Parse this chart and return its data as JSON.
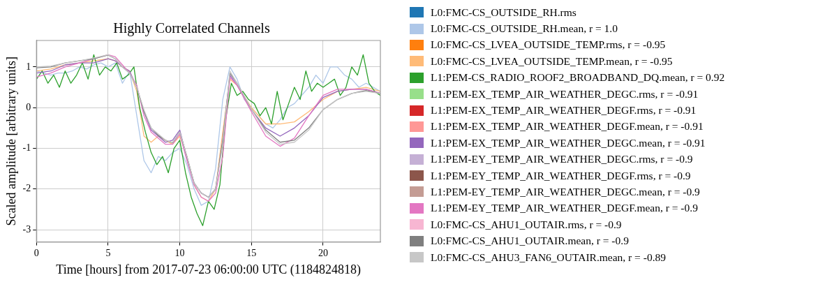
{
  "chart_data": {
    "type": "line",
    "title": "Highly Correlated Channels",
    "xlabel": "Time [hours] from 2017-07-23 06:00:00 UTC (1184824818)",
    "ylabel": "Scaled amplitude [arbitrary units]",
    "xlim": [
      0,
      24
    ],
    "xticks": [
      0,
      5,
      10,
      15,
      20
    ],
    "ylim": [
      -3.3,
      1.65
    ],
    "yticks": [
      -3,
      -2,
      -1,
      0,
      1
    ],
    "grid": true,
    "legend": "right",
    "marker": "none",
    "line_style": "solid",
    "x": [
      0,
      1,
      2,
      3,
      4,
      5,
      5.5,
      6,
      6.5,
      7,
      7.5,
      8,
      8.5,
      9,
      9.5,
      10,
      10.5,
      11,
      11.5,
      12,
      12.5,
      13,
      13.5,
      14,
      15,
      16,
      17,
      18,
      19,
      20,
      21,
      22,
      23,
      24
    ],
    "series": [
      {
        "name": "L0:FMC-CS_OUTSIDE_RH.rms",
        "color": "#1f77b4",
        "values": [
          null,
          null,
          null,
          null,
          null,
          null,
          null,
          null,
          null,
          null,
          null,
          null,
          null,
          null,
          null,
          null,
          null,
          null,
          null,
          null,
          null,
          null,
          null,
          null,
          null,
          null,
          null,
          null,
          null,
          null,
          null,
          null,
          null,
          null
        ]
      },
      {
        "name": "L0:FMC-CS_OUTSIDE_RH.mean, r = 1.0",
        "color": "#aec7e8",
        "x": [
          0,
          0.5,
          1,
          1.5,
          2,
          2.5,
          3,
          3.5,
          4,
          4.5,
          5,
          5.5,
          6,
          6.5,
          7,
          7.5,
          8,
          8.5,
          9,
          9.5,
          10,
          10.5,
          11,
          11.5,
          12,
          12.5,
          13,
          13.5,
          14,
          14.5,
          15,
          15.5,
          16,
          16.5,
          17,
          17.5,
          18,
          18.5,
          19,
          19.5,
          20,
          20.5,
          21,
          21.5,
          22,
          22.5,
          23,
          23.5,
          24
        ],
        "values": [
          0.9,
          0.85,
          0.8,
          0.85,
          0.85,
          0.9,
          1.0,
          0.95,
          1.05,
          1.1,
          1.0,
          1.1,
          0.6,
          0.9,
          -0.2,
          -1.3,
          -1.6,
          -1.2,
          -1.3,
          -1.1,
          -1.0,
          -1.4,
          -2.0,
          -2.4,
          -2.3,
          -1.5,
          0.2,
          1.0,
          0.7,
          0.2,
          0.0,
          -0.2,
          -0.4,
          -0.5,
          -0.3,
          0.0,
          0.1,
          0.3,
          0.5,
          0.8,
          0.6,
          1.0,
          1.0,
          0.8,
          0.7,
          0.5,
          0.6,
          0.5,
          0.4
        ]
      },
      {
        "name": "L0:FMC-CS_LVEA_OUTSIDE_TEMP.rms, r = -0.95",
        "color": "#ff7f0e",
        "values": [
          null,
          null,
          null,
          null,
          null,
          null,
          null,
          null,
          null,
          null,
          null,
          null,
          null,
          null,
          null,
          null,
          null,
          null,
          null,
          null,
          null,
          null,
          null,
          null,
          null,
          null,
          null,
          null,
          null,
          null,
          null,
          null,
          null,
          null
        ]
      },
      {
        "name": "L0:FMC-CS_LVEA_OUTSIDE_TEMP.mean, r = -0.95",
        "color": "#ffbb78",
        "values": [
          0.9,
          0.95,
          1.05,
          1.1,
          1.15,
          1.2,
          1.15,
          1.0,
          0.9,
          0.4,
          -0.7,
          -0.85,
          -0.7,
          -0.8,
          -0.9,
          -0.7,
          -1.2,
          -1.9,
          -2.2,
          -2.3,
          -2.0,
          -0.6,
          0.7,
          0.55,
          0.0,
          -0.4,
          -0.4,
          -0.35,
          -0.1,
          0.2,
          0.4,
          0.45,
          0.5,
          0.4
        ]
      },
      {
        "name": "L1:PEM-CS_RADIO_ROOF2_BROADBAND_DQ.mean, r = 0.92",
        "color": "#2ca02c",
        "x": [
          0,
          0.4,
          0.8,
          1.2,
          1.6,
          2,
          2.4,
          2.8,
          3.2,
          3.6,
          4,
          4.4,
          4.8,
          5.2,
          5.6,
          6,
          6.4,
          6.8,
          7.2,
          7.6,
          8,
          8.4,
          8.8,
          9.2,
          9.6,
          10,
          10.4,
          10.8,
          11.2,
          11.6,
          12,
          12.4,
          12.8,
          13.2,
          13.6,
          14,
          14.4,
          14.8,
          15.2,
          15.6,
          16,
          16.4,
          16.8,
          17.2,
          17.6,
          18,
          18.4,
          18.8,
          19.2,
          19.6,
          20,
          20.4,
          20.8,
          21.2,
          21.6,
          22,
          22.4,
          22.8,
          23.2,
          23.6,
          24
        ],
        "values": [
          0.7,
          0.9,
          0.6,
          0.8,
          0.5,
          0.9,
          0.6,
          0.8,
          1.1,
          0.7,
          1.3,
          0.8,
          1.0,
          0.9,
          1.1,
          0.7,
          0.8,
          1.0,
          0.0,
          -0.6,
          -1.1,
          -1.4,
          -1.2,
          -1.6,
          -1.0,
          -0.8,
          -1.6,
          -2.2,
          -2.6,
          -2.9,
          -2.3,
          -2.5,
          -1.9,
          -0.3,
          0.6,
          0.3,
          0.4,
          0.2,
          0.1,
          -0.2,
          0.0,
          -0.4,
          0.4,
          -0.3,
          0.1,
          0.5,
          0.2,
          0.9,
          0.4,
          0.6,
          0.5,
          0.6,
          0.7,
          0.3,
          0.5,
          1.0,
          0.8,
          1.3,
          0.6,
          0.4,
          0.3
        ]
      },
      {
        "name": "L1:PEM-EX_TEMP_AIR_WEATHER_DEGC.rms, r = -0.91",
        "color": "#98df8a",
        "values": [
          null,
          null,
          null,
          null,
          null,
          null,
          null,
          null,
          null,
          null,
          null,
          null,
          null,
          null,
          null,
          null,
          null,
          null,
          null,
          null,
          null,
          null,
          null,
          null,
          null,
          null,
          null,
          null,
          null,
          null,
          null,
          null,
          null,
          null
        ]
      },
      {
        "name": "L1:PEM-EX_TEMP_AIR_WEATHER_DEGF.rms, r = -0.91",
        "color": "#d62728",
        "values": [
          null,
          null,
          null,
          null,
          null,
          null,
          null,
          null,
          null,
          null,
          null,
          null,
          null,
          null,
          null,
          null,
          null,
          null,
          null,
          null,
          null,
          null,
          null,
          null,
          null,
          null,
          null,
          null,
          null,
          null,
          null,
          null,
          null,
          null
        ]
      },
      {
        "name": "L1:PEM-EX_TEMP_AIR_WEATHER_DEGF.mean, r = -0.91",
        "color": "#ff9896",
        "values": [
          null,
          null,
          null,
          null,
          null,
          null,
          null,
          null,
          null,
          null,
          null,
          null,
          null,
          null,
          null,
          null,
          null,
          null,
          null,
          null,
          null,
          null,
          null,
          null,
          null,
          null,
          null,
          null,
          null,
          null,
          null,
          null,
          null,
          null
        ]
      },
      {
        "name": "L1:PEM-EX_TEMP_AIR_WEATHER_DEGC.mean, r = -0.91",
        "color": "#9467bd",
        "values": [
          0.85,
          0.9,
          1.05,
          1.1,
          1.1,
          1.2,
          1.15,
          1.0,
          0.9,
          0.5,
          -0.1,
          -0.55,
          -0.7,
          -0.85,
          -0.8,
          -0.55,
          -1.25,
          -1.85,
          -2.1,
          -2.2,
          -2.0,
          -0.8,
          0.8,
          0.55,
          -0.05,
          -0.5,
          -0.7,
          -0.5,
          -0.2,
          0.25,
          0.4,
          0.45,
          0.45,
          0.35
        ]
      },
      {
        "name": "L1:PEM-EY_TEMP_AIR_WEATHER_DEGC.rms, r = -0.9",
        "color": "#c5b0d5",
        "values": [
          null,
          null,
          null,
          null,
          null,
          null,
          null,
          null,
          null,
          null,
          null,
          null,
          null,
          null,
          null,
          null,
          null,
          null,
          null,
          null,
          null,
          null,
          null,
          null,
          null,
          null,
          null,
          null,
          null,
          null,
          null,
          null,
          null,
          null
        ]
      },
      {
        "name": "L1:PEM-EY_TEMP_AIR_WEATHER_DEGF.rms, r = -0.9",
        "color": "#8c564b",
        "values": [
          null,
          null,
          null,
          null,
          null,
          null,
          null,
          null,
          null,
          null,
          null,
          null,
          null,
          null,
          null,
          null,
          null,
          null,
          null,
          null,
          null,
          null,
          null,
          null,
          null,
          null,
          null,
          null,
          null,
          null,
          null,
          null,
          null,
          null
        ]
      },
      {
        "name": "L1:PEM-EY_TEMP_AIR_WEATHER_DEGC.mean, r = -0.9",
        "color": "#c49c94",
        "values": [
          null,
          null,
          null,
          null,
          null,
          null,
          null,
          null,
          null,
          null,
          null,
          null,
          null,
          null,
          null,
          null,
          null,
          null,
          null,
          null,
          null,
          null,
          null,
          null,
          null,
          null,
          null,
          null,
          null,
          null,
          null,
          null,
          null,
          null
        ]
      },
      {
        "name": "L1:PEM-EY_TEMP_AIR_WEATHER_DEGF.mean, r = -0.9",
        "color": "#e377c2",
        "values": [
          0.75,
          0.85,
          1.0,
          1.1,
          1.2,
          1.3,
          1.25,
          1.05,
          0.85,
          0.55,
          -0.2,
          -0.6,
          -0.75,
          -0.9,
          -0.9,
          -0.65,
          -1.3,
          -1.9,
          -2.2,
          -2.3,
          -2.1,
          -1.2,
          0.75,
          0.55,
          -0.1,
          -0.7,
          -0.95,
          -0.75,
          -0.2,
          0.3,
          0.45,
          0.45,
          0.45,
          0.35
        ]
      },
      {
        "name": "L0:FMC-CS_AHU1_OUTAIR.rms, r = -0.9",
        "color": "#f7b6d2",
        "values": [
          null,
          null,
          null,
          null,
          null,
          null,
          null,
          null,
          null,
          null,
          null,
          null,
          null,
          null,
          null,
          null,
          null,
          null,
          null,
          null,
          null,
          null,
          null,
          null,
          null,
          null,
          null,
          null,
          null,
          null,
          null,
          null,
          null,
          null
        ]
      },
      {
        "name": "L0:FMC-CS_AHU1_OUTAIR.mean, r = -0.9",
        "color": "#7f7f7f",
        "values": [
          0.98,
          1.0,
          1.1,
          1.15,
          1.2,
          1.29,
          1.2,
          1.0,
          0.85,
          0.5,
          -0.1,
          -0.5,
          -0.68,
          -0.8,
          -0.86,
          -0.6,
          -1.2,
          -1.85,
          -2.1,
          -2.2,
          -2.0,
          -0.8,
          0.85,
          0.6,
          -0.04,
          -0.55,
          -0.85,
          -0.8,
          -0.5,
          -0.05,
          0.2,
          0.35,
          0.42,
          0.35
        ]
      },
      {
        "name": "L0:FMC-CS_AHU3_FAN6_OUTAIR.mean, r = -0.89",
        "color": "#c7c7c7",
        "values": [
          1.0,
          1.02,
          1.1,
          1.15,
          1.22,
          1.3,
          1.2,
          1.0,
          0.85,
          0.5,
          -0.05,
          -0.5,
          -0.65,
          -0.8,
          -0.85,
          -0.6,
          -1.2,
          -1.85,
          -2.1,
          -2.2,
          -2.0,
          -0.9,
          0.9,
          0.6,
          -0.04,
          -0.6,
          -0.9,
          -0.85,
          -0.55,
          -0.05,
          0.2,
          0.35,
          0.4,
          0.35
        ]
      }
    ]
  }
}
